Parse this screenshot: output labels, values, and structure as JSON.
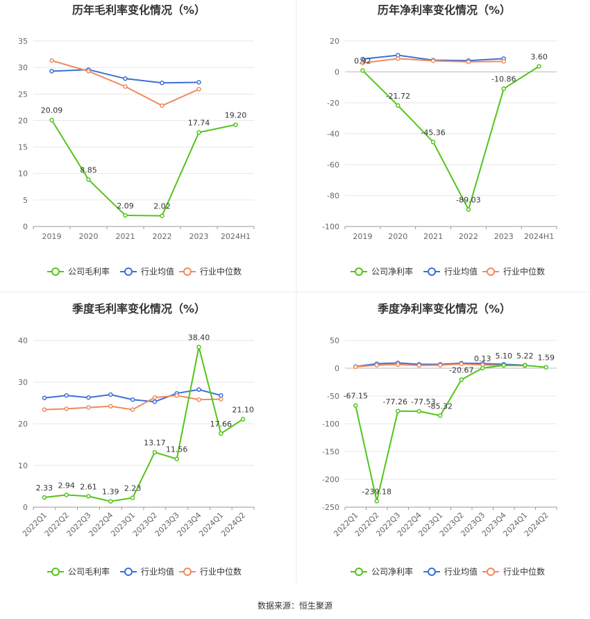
{
  "source": "数据来源：恒生聚源",
  "colors": {
    "company": "#52c41a",
    "avg": "#3b6fd8",
    "median": "#f08a5d"
  },
  "chart_data": [
    {
      "type": "line",
      "title": "历年毛利率变化情况（%）",
      "categories": [
        "2019",
        "2020",
        "2021",
        "2022",
        "2023",
        "2024H1"
      ],
      "ylim": [
        0,
        35
      ],
      "yticks": [
        0,
        5,
        10,
        15,
        20,
        25,
        30,
        35
      ],
      "grid": true,
      "legend_position": "bottom",
      "series": [
        {
          "name": "公司毛利率",
          "key": "company",
          "values": [
            20.09,
            8.85,
            2.09,
            2.02,
            17.74,
            19.2
          ],
          "labels": [
            "20.09",
            "8.85",
            "2.09",
            "2.02",
            "17.74",
            "19.20"
          ]
        },
        {
          "name": "行业均值",
          "key": "avg",
          "values": [
            29.3,
            29.6,
            27.9,
            27.1,
            27.2,
            null
          ]
        },
        {
          "name": "行业中位数",
          "key": "median",
          "values": [
            31.3,
            29.3,
            26.4,
            22.8,
            25.9,
            null
          ]
        }
      ]
    },
    {
      "type": "line",
      "title": "历年净利率变化情况（%）",
      "categories": [
        "2019",
        "2020",
        "2021",
        "2022",
        "2023",
        "2024H1"
      ],
      "ylim": [
        -100,
        20
      ],
      "yticks": [
        -100,
        -80,
        -60,
        -40,
        -20,
        0,
        20
      ],
      "grid": true,
      "legend_position": "bottom",
      "series": [
        {
          "name": "公司净利率",
          "key": "company",
          "values": [
            0.92,
            -21.72,
            -45.36,
            -89.03,
            -10.86,
            3.6
          ],
          "labels": [
            "0.92",
            "-21.72",
            "-45.36",
            "-89.03",
            "-10.86",
            "3.60"
          ]
        },
        {
          "name": "行业均值",
          "key": "avg",
          "values": [
            8.3,
            10.8,
            7.6,
            7.3,
            8.6,
            null
          ]
        },
        {
          "name": "行业中位数",
          "key": "median",
          "values": [
            5.8,
            8.6,
            7.2,
            6.5,
            6.8,
            null
          ]
        }
      ]
    },
    {
      "type": "line",
      "title": "季度毛利率变化情况（%）",
      "categories": [
        "2022Q1",
        "2022Q2",
        "2022Q3",
        "2022Q4",
        "2023Q1",
        "2023Q2",
        "2023Q3",
        "2023Q4",
        "2024Q1",
        "2024Q2"
      ],
      "ylim": [
        0,
        40
      ],
      "yticks": [
        0,
        10,
        20,
        30,
        40
      ],
      "grid": true,
      "legend_position": "bottom",
      "series": [
        {
          "name": "公司毛利率",
          "key": "company",
          "values": [
            2.33,
            2.94,
            2.61,
            1.39,
            2.23,
            13.17,
            11.56,
            38.4,
            17.66,
            21.1
          ],
          "labels": [
            "2.33",
            "2.94",
            "2.61",
            "1.39",
            "2.23",
            "13.17",
            "11.56",
            "38.40",
            "17.66",
            "21.10"
          ]
        },
        {
          "name": "行业均值",
          "key": "avg",
          "values": [
            26.2,
            26.8,
            26.3,
            27.0,
            25.8,
            25.3,
            27.3,
            28.2,
            26.8,
            null
          ]
        },
        {
          "name": "行业中位数",
          "key": "median",
          "values": [
            23.4,
            23.6,
            23.9,
            24.2,
            23.4,
            26.3,
            26.8,
            25.8,
            25.9,
            null
          ]
        }
      ]
    },
    {
      "type": "line",
      "title": "季度净利率变化情况（%）",
      "categories": [
        "2022Q1",
        "2022Q2",
        "2022Q3",
        "2022Q4",
        "2023Q1",
        "2023Q2",
        "2023Q3",
        "2023Q4",
        "2024Q1",
        "2024Q2"
      ],
      "ylim": [
        -250,
        50
      ],
      "yticks": [
        -250,
        -200,
        -150,
        -100,
        -50,
        0,
        50
      ],
      "grid": true,
      "legend_position": "bottom",
      "series": [
        {
          "name": "公司净利率",
          "key": "company",
          "values": [
            -67.15,
            -239.18,
            -77.26,
            -77.53,
            -85.32,
            -20.67,
            0.13,
            5.1,
            5.22,
            1.59
          ],
          "labels": [
            "-67.15",
            "-239.18",
            "-77.26",
            "-77.53",
            "-85.32",
            "-20.67",
            "0.13",
            "5.10",
            "5.22",
            "1.59"
          ]
        },
        {
          "name": "行业均值",
          "key": "avg",
          "values": [
            3.0,
            8.0,
            9.5,
            7.0,
            7.0,
            9.0,
            8.5,
            7.0,
            5.5,
            null
          ]
        },
        {
          "name": "行业中位数",
          "key": "median",
          "values": [
            2.5,
            5.5,
            6.5,
            5.0,
            5.5,
            7.5,
            6.0,
            5.0,
            4.5,
            null
          ]
        }
      ]
    }
  ]
}
